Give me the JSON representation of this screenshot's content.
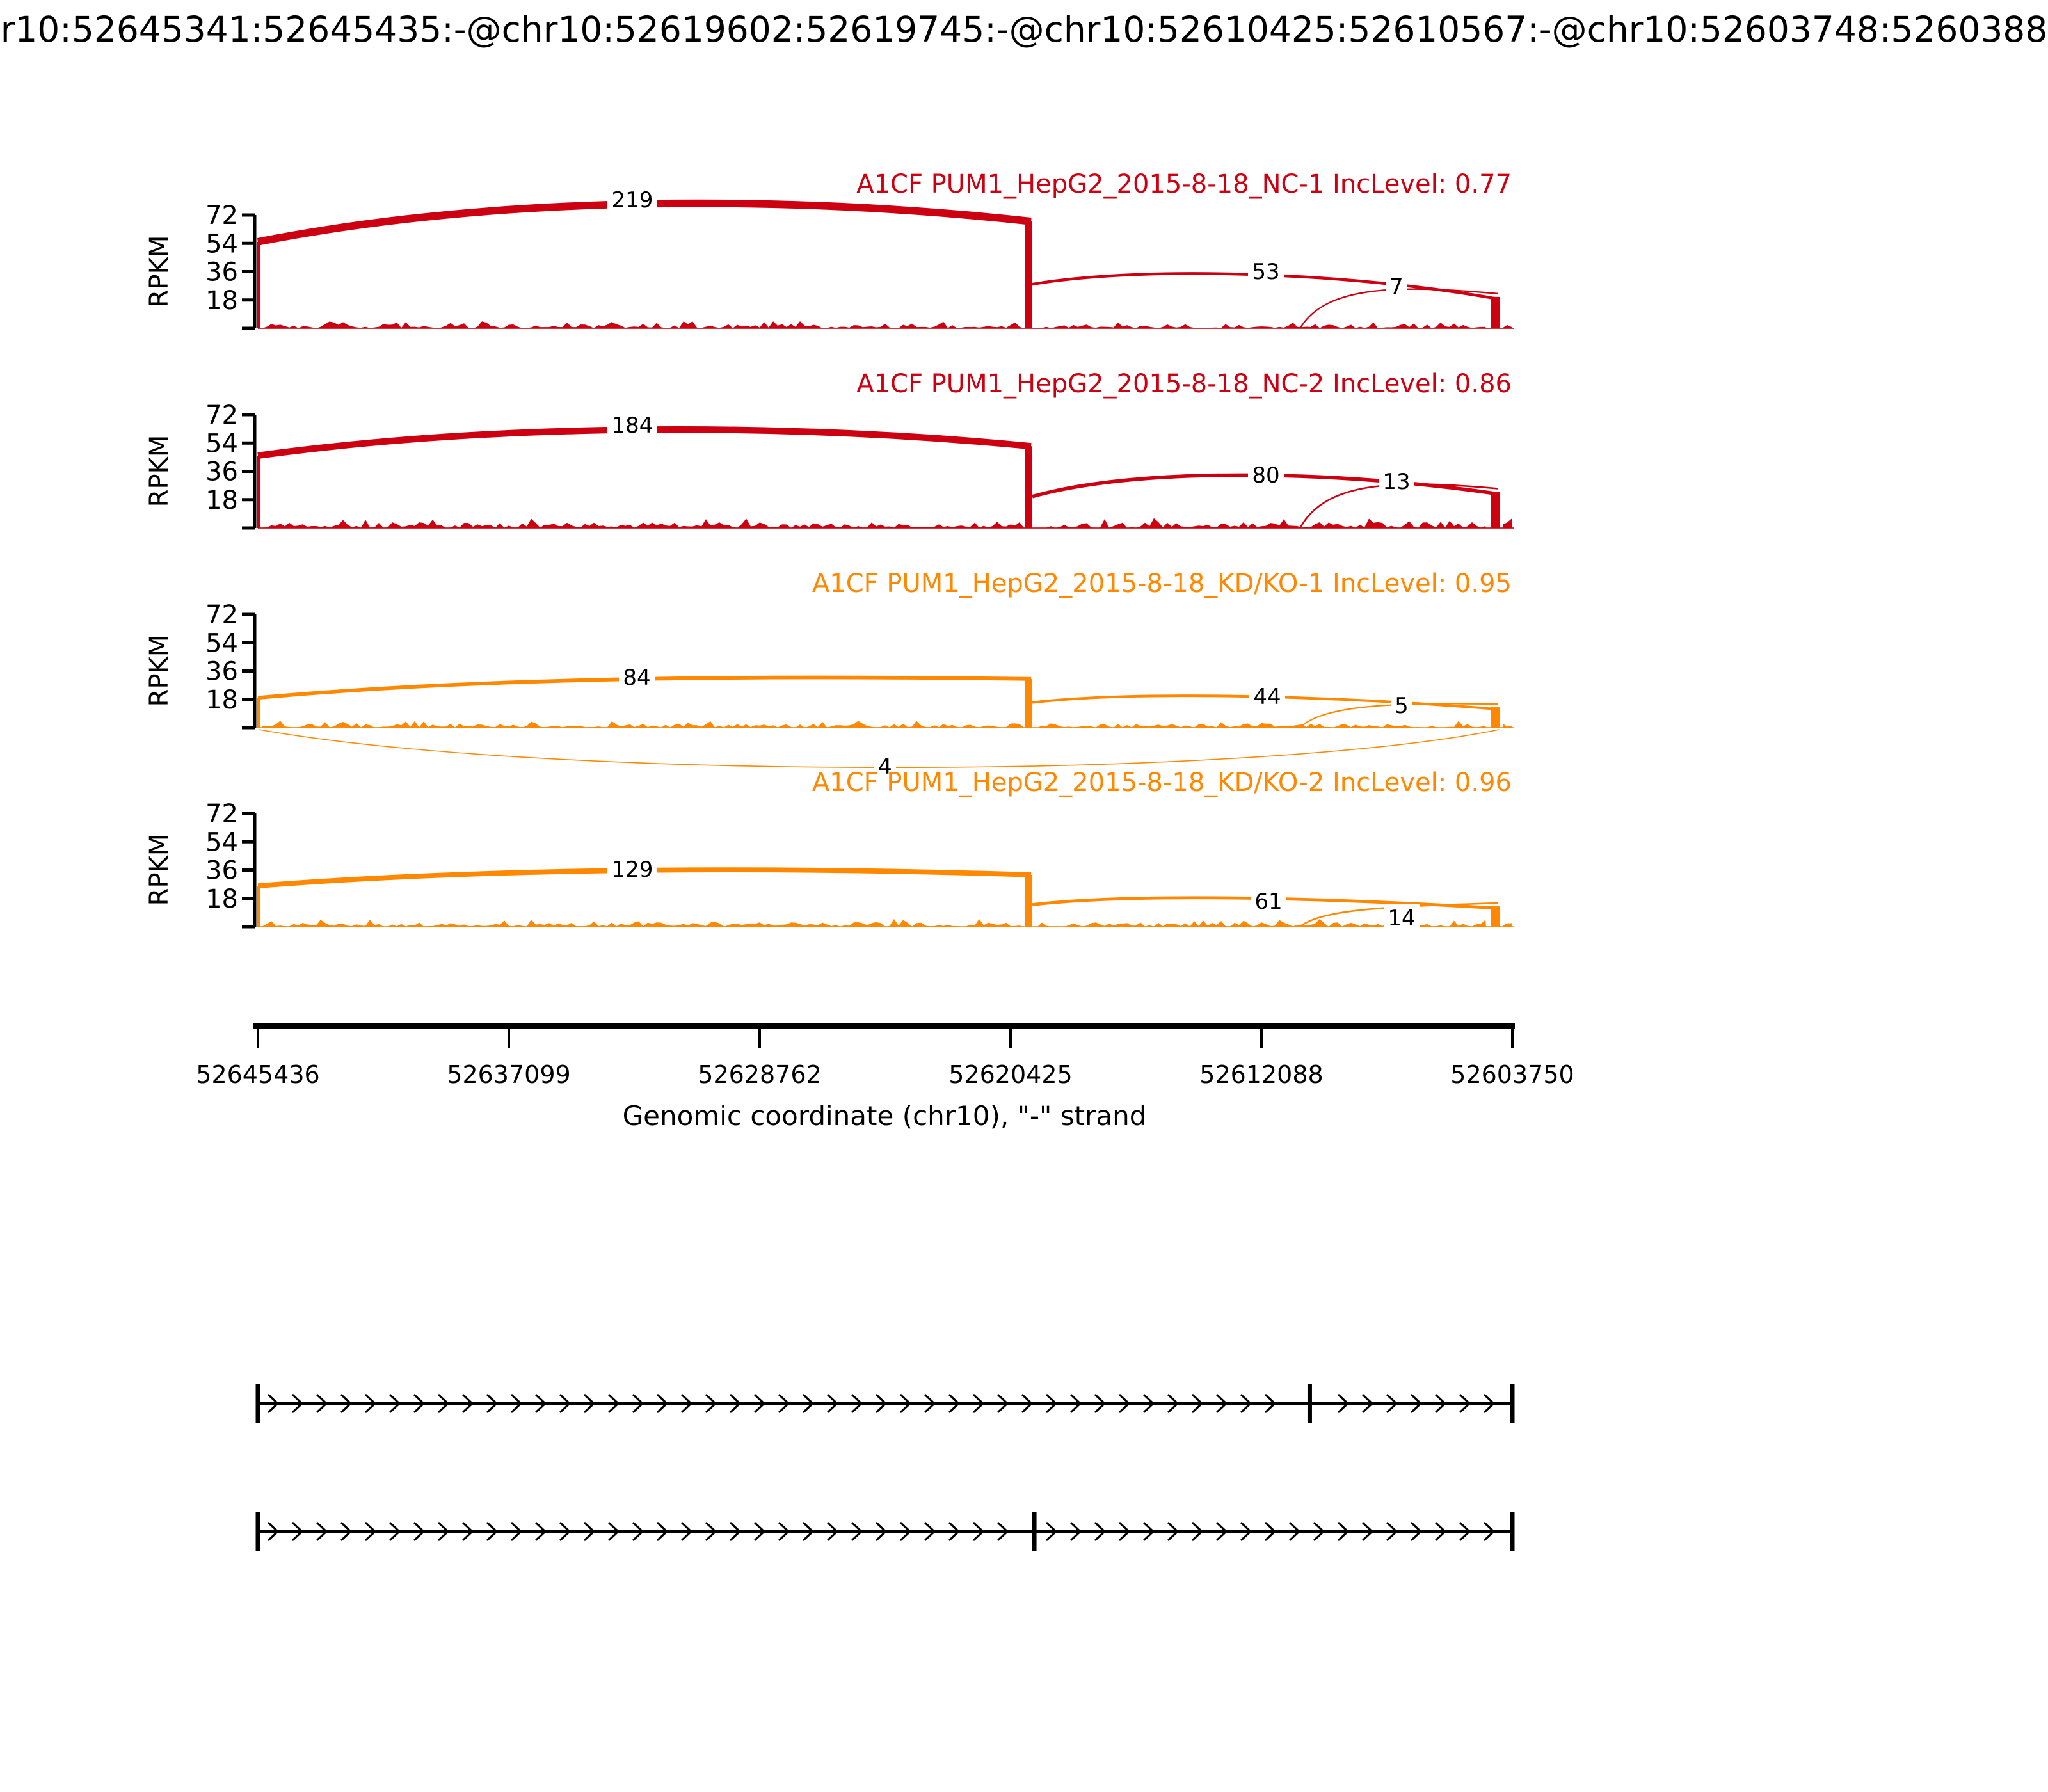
{
  "title": "r10:52645341:52645435:-@chr10:52619602:52619745:-@chr10:52610425:52610567:-@chr10:52603748:5260388",
  "y_axis": {
    "label": "RPKM",
    "tick_labels": [
      "72",
      "54",
      "36",
      "18"
    ]
  },
  "x_axis": {
    "tick_labels": [
      "52645436",
      "52637099",
      "52628762",
      "52620425",
      "52612088",
      "52603750"
    ],
    "label": "Genomic coordinate (chr10), \"-\" strand"
  },
  "colors": {
    "nc": "#CC0011",
    "kdko": "#FF8800",
    "axis": "#000000"
  },
  "chart_data": {
    "type": "sashimi",
    "y_unit": "RPKM",
    "y_ticks": [
      18,
      36,
      54,
      72
    ],
    "x_ticks": [
      52645436,
      52637099,
      52628762,
      52620425,
      52612088,
      52603750
    ],
    "x_range_note": "minus strand, left 52645436 to right 52603750",
    "coordinate_label": "Genomic coordinate (chr10), \"-\" strand",
    "groups": [
      {
        "name": "NC",
        "color": "#CC0011"
      },
      {
        "name": "KD/KO",
        "color": "#FF8800"
      }
    ],
    "tracks": [
      {
        "title": "A1CF PUM1_HepG2_2015-8-18_NC-1 IncLevel: 0.77",
        "sample": "NC-1",
        "inc_level": 0.77,
        "color": "#CC0011",
        "junctions": [
          219,
          53,
          7
        ]
      },
      {
        "title": "A1CF PUM1_HepG2_2015-8-18_NC-2 IncLevel: 0.86",
        "sample": "NC-2",
        "inc_level": 0.86,
        "color": "#CC0011",
        "junctions": [
          184,
          80,
          13
        ]
      },
      {
        "title": "A1CF PUM1_HepG2_2015-8-18_KD/KO-1 IncLevel: 0.95",
        "sample": "KD/KO-1",
        "inc_level": 0.95,
        "color": "#FF8800",
        "junctions": [
          84,
          44,
          5
        ],
        "skip_junction": 4
      },
      {
        "title": "A1CF PUM1_HepG2_2015-8-18_KD/KO-2 IncLevel: 0.96",
        "sample": "KD/KO-2",
        "inc_level": 0.96,
        "color": "#FF8800",
        "junctions": [
          129,
          61,
          14
        ]
      }
    ],
    "gene_models": [
      {
        "exon_break_fractions": [
          0.0,
          0.8385,
          1.0
        ]
      },
      {
        "exon_break_fractions": [
          0.0,
          0.6189,
          1.0
        ]
      }
    ]
  }
}
